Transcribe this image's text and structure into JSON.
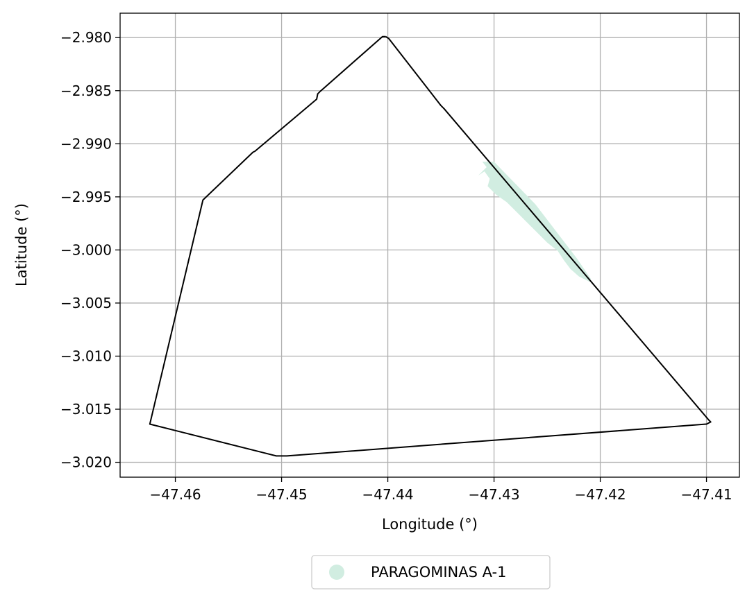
{
  "chart_data": {
    "type": "map",
    "xlabel": "Longitude (°)",
    "ylabel": "Latitude (°)",
    "xlim": [
      -47.4652,
      -47.4069
    ],
    "ylim": [
      -3.0214,
      -2.9777
    ],
    "grid": true,
    "x_ticks": [
      -47.46,
      -47.45,
      -47.44,
      -47.43,
      -47.42,
      -47.41
    ],
    "x_tick_labels": [
      "−47.46",
      "−47.45",
      "−47.44",
      "−47.43",
      "−47.42",
      "−47.41"
    ],
    "y_ticks": [
      -2.98,
      -2.985,
      -2.99,
      -2.995,
      -3.0,
      -3.005,
      -3.01,
      -3.015,
      -3.02
    ],
    "y_tick_labels": [
      "−2.980",
      "−2.985",
      "−2.990",
      "−2.995",
      "−3.000",
      "−3.005",
      "−3.010",
      "−3.015",
      "−3.020"
    ],
    "boundary": {
      "stroke": "#000000",
      "points": [
        [
          -47.4402,
          -2.9799
        ],
        [
          -47.4399,
          -2.9801
        ],
        [
          -47.435,
          -2.9864
        ],
        [
          -47.4347,
          -2.9867
        ],
        [
          -47.4098,
          -3.016
        ],
        [
          -47.4096,
          -3.0162
        ],
        [
          -47.41,
          -3.0164
        ],
        [
          -47.4495,
          -3.0194
        ],
        [
          -47.4505,
          -3.0194
        ],
        [
          -47.4624,
          -3.0164
        ],
        [
          -47.4574,
          -2.9953
        ],
        [
          -47.4527,
          -2.9908
        ],
        [
          -47.4525,
          -2.9907
        ],
        [
          -47.4467,
          -2.9858
        ],
        [
          -47.4466,
          -2.9853
        ],
        [
          -47.4464,
          -2.9851
        ],
        [
          -47.4405,
          -2.9799
        ],
        [
          -47.4402,
          -2.9799
        ]
      ]
    },
    "series": [
      {
        "name": "PARAGOMINAS A-1",
        "color": "#d1ede1",
        "polygon": [
          [
            -47.4311,
            -2.9917
          ],
          [
            -47.43,
            -2.9917
          ],
          [
            -47.4261,
            -2.9957
          ],
          [
            -47.4222,
            -3.0008
          ],
          [
            -47.4209,
            -3.0027
          ],
          [
            -47.421,
            -3.003
          ],
          [
            -47.422,
            -3.0025
          ],
          [
            -47.4228,
            -3.0018
          ],
          [
            -47.4234,
            -3.001
          ],
          [
            -47.424,
            -3.0001
          ],
          [
            -47.425,
            -2.9993
          ],
          [
            -47.4258,
            -2.9985
          ],
          [
            -47.4268,
            -2.9975
          ],
          [
            -47.4279,
            -2.9964
          ],
          [
            -47.4288,
            -2.9955
          ],
          [
            -47.4298,
            -2.9948
          ],
          [
            -47.4306,
            -2.994
          ],
          [
            -47.4304,
            -2.9933
          ],
          [
            -47.4309,
            -2.9926
          ],
          [
            -47.4315,
            -2.993
          ],
          [
            -47.4307,
            -2.9922
          ]
        ]
      }
    ],
    "legend": {
      "placement": "bottom-center",
      "entries": [
        "PARAGOMINAS A-1"
      ]
    }
  }
}
